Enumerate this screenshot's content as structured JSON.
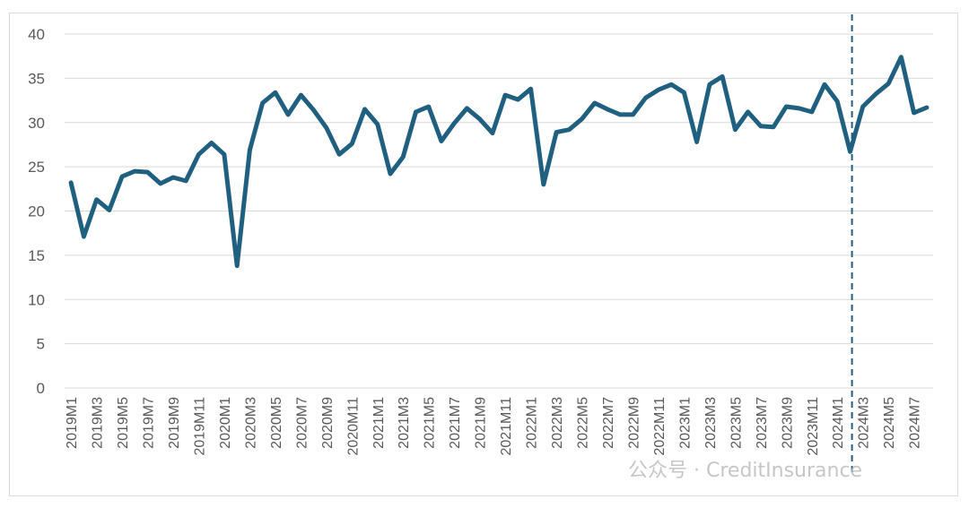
{
  "chart_data": {
    "type": "line",
    "title": "",
    "xlabel": "",
    "ylabel": "",
    "ylim": [
      0,
      40
    ],
    "yticks": [
      0,
      5,
      10,
      15,
      20,
      25,
      30,
      35,
      40
    ],
    "grid": "horizontal",
    "legend": "none",
    "line_color": "#1f5f7f",
    "divider_color": "#1f5f7f",
    "divider_after": "2024M2",
    "x": [
      "2019M1",
      "2019M2",
      "2019M3",
      "2019M4",
      "2019M5",
      "2019M6",
      "2019M7",
      "2019M8",
      "2019M9",
      "2019M10",
      "2019M11",
      "2019M12",
      "2020M1",
      "2020M2",
      "2020M3",
      "2020M4",
      "2020M5",
      "2020M6",
      "2020M7",
      "2020M8",
      "2020M9",
      "2020M10",
      "2020M11",
      "2020M12",
      "2021M1",
      "2021M2",
      "2021M3",
      "2021M4",
      "2021M5",
      "2021M6",
      "2021M7",
      "2021M8",
      "2021M9",
      "2021M10",
      "2021M11",
      "2021M12",
      "2022M1",
      "2022M2",
      "2022M3",
      "2022M4",
      "2022M5",
      "2022M6",
      "2022M7",
      "2022M8",
      "2022M9",
      "2022M10",
      "2022M11",
      "2022M12",
      "2023M1",
      "2023M2",
      "2023M3",
      "2023M4",
      "2023M5",
      "2023M6",
      "2023M7",
      "2023M8",
      "2023M9",
      "2023M10",
      "2023M11",
      "2023M12",
      "2024M1",
      "2024M2",
      "2024M3",
      "2024M4",
      "2024M5",
      "2024M6",
      "2024M7",
      "2024M8"
    ],
    "series": [
      {
        "values": [
          23.2,
          17.1,
          21.3,
          20.1,
          23.9,
          24.5,
          24.4,
          23.1,
          23.8,
          23.4,
          26.4,
          27.7,
          26.4,
          13.8,
          26.9,
          32.2,
          33.4,
          30.9,
          33.1,
          31.4,
          29.4,
          26.4,
          27.6,
          31.5,
          29.8,
          24.2,
          26.1,
          31.2,
          31.8,
          27.9,
          29.9,
          31.6,
          30.4,
          28.8,
          33.1,
          32.6,
          33.8,
          23.0,
          28.9,
          29.2,
          30.4,
          32.2,
          31.5,
          30.9,
          30.9,
          32.8,
          33.7,
          34.3,
          33.4,
          27.8,
          34.3,
          35.2,
          29.2,
          31.2,
          29.6,
          29.5,
          31.8,
          31.6,
          31.2,
          34.3,
          32.4,
          26.7,
          31.8,
          33.2,
          34.4,
          37.4,
          31.1,
          31.7
        ]
      }
    ],
    "watermark": "公众号 · CreditInsurance"
  }
}
